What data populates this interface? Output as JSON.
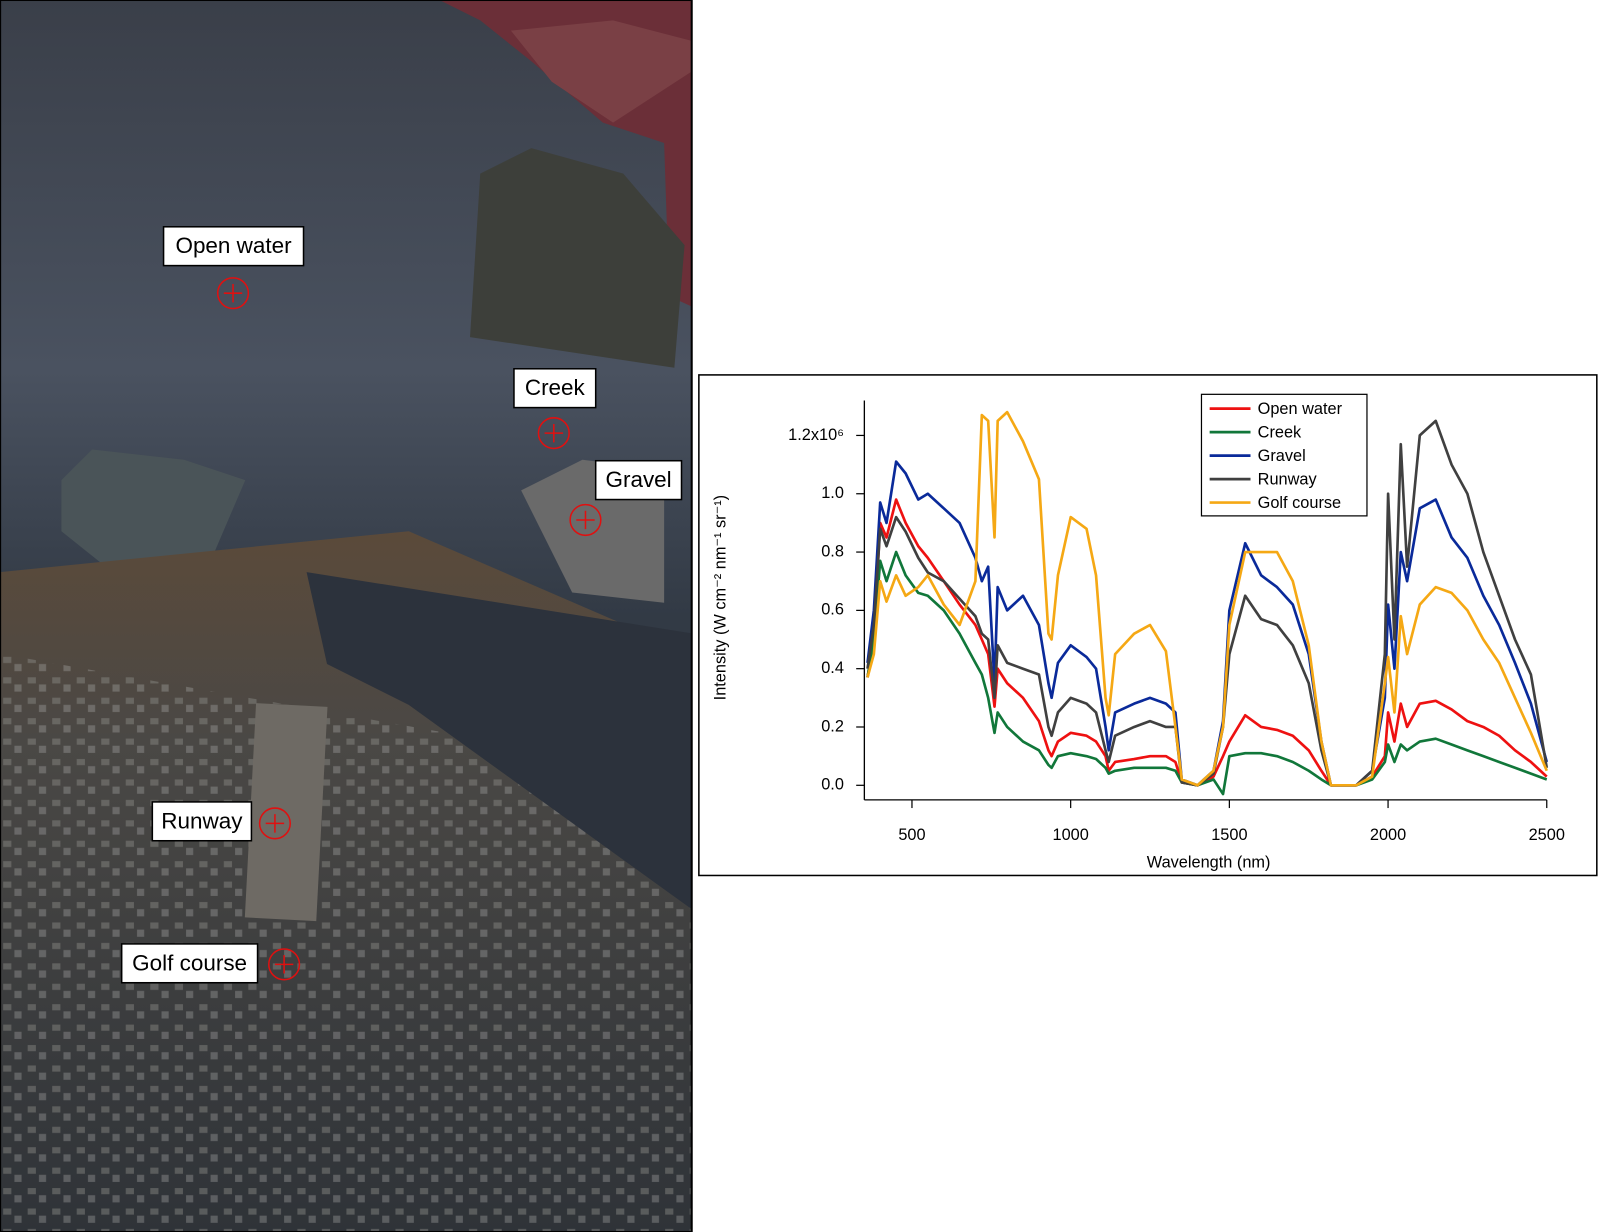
{
  "map": {
    "labels": [
      "Open water",
      "Creek",
      "Gravel",
      "Runway",
      "Golf course"
    ]
  },
  "chart_data": {
    "type": "line",
    "xlabel": "Wavelength (nm)",
    "ylabel": "Intensity (W cm⁻² nm⁻¹ sr⁻¹)",
    "xlim": [
      350,
      2500
    ],
    "ylim": [
      -0.05,
      1.32
    ],
    "xticks": [
      500,
      1000,
      1500,
      2000,
      2500
    ],
    "yticks": [
      {
        "value": 0,
        "label": "0.0"
      },
      {
        "value": 0.2,
        "label": "0.2"
      },
      {
        "value": 0.4,
        "label": "0.4"
      },
      {
        "value": 0.6,
        "label": "0.6"
      },
      {
        "value": 0.8,
        "label": "0.8"
      },
      {
        "value": 1,
        "label": "1.0"
      },
      {
        "value": 1.2,
        "label": "1.2x10⁶"
      }
    ],
    "legend": "top-right",
    "x": [
      360,
      380,
      400,
      420,
      450,
      480,
      520,
      550,
      600,
      650,
      700,
      720,
      740,
      760,
      770,
      800,
      850,
      900,
      930,
      940,
      960,
      1000,
      1050,
      1080,
      1110,
      1120,
      1140,
      1200,
      1250,
      1300,
      1330,
      1350,
      1400,
      1450,
      1480,
      1500,
      1550,
      1600,
      1650,
      1700,
      1750,
      1790,
      1820,
      1900,
      1950,
      1990,
      2000,
      2020,
      2040,
      2060,
      2100,
      2150,
      2200,
      2250,
      2300,
      2350,
      2400,
      2450,
      2500
    ],
    "series": [
      {
        "name": "Open water",
        "color": "#ee1111",
        "values": [
          0.37,
          0.5,
          0.9,
          0.85,
          0.98,
          0.9,
          0.82,
          0.78,
          0.7,
          0.62,
          0.55,
          0.5,
          0.45,
          0.27,
          0.4,
          0.35,
          0.3,
          0.22,
          0.12,
          0.1,
          0.15,
          0.18,
          0.17,
          0.15,
          0.1,
          0.05,
          0.08,
          0.09,
          0.1,
          0.1,
          0.08,
          0.01,
          0.0,
          0.03,
          0.1,
          0.15,
          0.24,
          0.2,
          0.19,
          0.17,
          0.12,
          0.05,
          0.0,
          0.0,
          0.03,
          0.1,
          0.25,
          0.15,
          0.28,
          0.2,
          0.28,
          0.29,
          0.26,
          0.22,
          0.2,
          0.17,
          0.12,
          0.08,
          0.03
        ]
      },
      {
        "name": "Creek",
        "color": "#11773a",
        "values": [
          0.37,
          0.5,
          0.77,
          0.7,
          0.8,
          0.72,
          0.66,
          0.65,
          0.6,
          0.52,
          0.42,
          0.38,
          0.3,
          0.18,
          0.25,
          0.2,
          0.15,
          0.12,
          0.07,
          0.06,
          0.1,
          0.11,
          0.1,
          0.09,
          0.06,
          0.04,
          0.05,
          0.06,
          0.06,
          0.06,
          0.05,
          0.01,
          0.0,
          0.02,
          -0.03,
          0.1,
          0.11,
          0.11,
          0.1,
          0.08,
          0.05,
          0.02,
          0.0,
          0.0,
          0.02,
          0.08,
          0.14,
          0.08,
          0.14,
          0.12,
          0.15,
          0.16,
          0.14,
          0.12,
          0.1,
          0.08,
          0.06,
          0.04,
          0.02
        ]
      },
      {
        "name": "Gravel",
        "color": "#0a2a9a",
        "values": [
          0.42,
          0.6,
          0.97,
          0.9,
          1.11,
          1.07,
          0.98,
          1.0,
          0.95,
          0.9,
          0.78,
          0.7,
          0.75,
          0.35,
          0.68,
          0.6,
          0.65,
          0.55,
          0.35,
          0.3,
          0.42,
          0.48,
          0.44,
          0.4,
          0.2,
          0.12,
          0.25,
          0.28,
          0.3,
          0.28,
          0.25,
          0.02,
          0.0,
          0.05,
          0.22,
          0.6,
          0.83,
          0.72,
          0.68,
          0.62,
          0.45,
          0.15,
          0.0,
          0.0,
          0.05,
          0.3,
          0.62,
          0.4,
          0.8,
          0.7,
          0.95,
          0.98,
          0.85,
          0.78,
          0.65,
          0.55,
          0.42,
          0.28,
          0.08
        ]
      },
      {
        "name": "Runway",
        "color": "#404040",
        "values": [
          0.4,
          0.55,
          0.88,
          0.82,
          0.92,
          0.87,
          0.78,
          0.73,
          0.7,
          0.64,
          0.58,
          0.52,
          0.5,
          0.3,
          0.48,
          0.42,
          0.4,
          0.38,
          0.2,
          0.17,
          0.25,
          0.3,
          0.28,
          0.25,
          0.12,
          0.08,
          0.17,
          0.2,
          0.22,
          0.2,
          0.2,
          0.01,
          0.0,
          0.04,
          0.2,
          0.45,
          0.65,
          0.57,
          0.55,
          0.48,
          0.35,
          0.12,
          0.0,
          0.0,
          0.05,
          0.45,
          1.0,
          0.5,
          1.17,
          0.75,
          1.2,
          1.25,
          1.1,
          1.0,
          0.8,
          0.65,
          0.5,
          0.38,
          0.06
        ]
      },
      {
        "name": "Golf course",
        "color": "#f5a814",
        "values": [
          0.37,
          0.45,
          0.7,
          0.63,
          0.72,
          0.65,
          0.68,
          0.72,
          0.62,
          0.55,
          0.7,
          1.27,
          1.25,
          0.85,
          1.25,
          1.28,
          1.18,
          1.05,
          0.52,
          0.5,
          0.72,
          0.92,
          0.88,
          0.72,
          0.3,
          0.24,
          0.45,
          0.52,
          0.55,
          0.46,
          0.2,
          0.02,
          0.0,
          0.05,
          0.2,
          0.55,
          0.8,
          0.8,
          0.8,
          0.7,
          0.48,
          0.15,
          0.0,
          0.0,
          0.03,
          0.35,
          0.44,
          0.25,
          0.58,
          0.45,
          0.62,
          0.68,
          0.66,
          0.6,
          0.5,
          0.42,
          0.3,
          0.18,
          0.05
        ]
      }
    ]
  }
}
